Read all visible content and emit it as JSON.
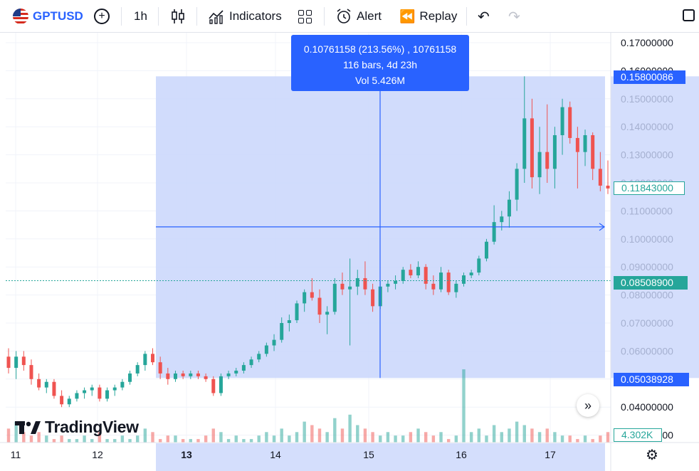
{
  "toolbar": {
    "symbol": "GPTUSD",
    "interval": "1h",
    "indicators_label": "Indicators",
    "alert_label": "Alert",
    "replay_label": "Replay"
  },
  "measure_tooltip": {
    "line1": "0.10761158 (213.56%) , 10761158",
    "line2": "116 bars, 4d 23h",
    "line3": "Vol 5.426M"
  },
  "price_tags": {
    "range_high": "0.15800086",
    "last_price": "0.11843000",
    "crosshair_price": "0.08508900",
    "range_low": "0.05038928",
    "volume": "4.302K"
  },
  "branding": "TradingView",
  "colors": {
    "up": "#26a69a",
    "down": "#ef5350",
    "accent": "#2962ff",
    "range_fill": "#c9d6fb"
  },
  "chart_data": {
    "type": "candlestick",
    "y_axis_ticks": [
      "0.17000000",
      "0.16000000",
      "0.15000000",
      "0.14000000",
      "0.13000000",
      "0.12000000",
      "0.11000000",
      "0.10000000",
      "0.09000000",
      "0.08000000",
      "0.07000000",
      "0.06000000",
      "0.05000000",
      "0.04000000",
      "0.03000000"
    ],
    "x_axis_ticks": [
      "11",
      "12",
      "13",
      "14",
      "15",
      "16",
      "17"
    ],
    "highlighted_x_tick": "13",
    "measure_range": {
      "price_low": 0.05038928,
      "price_high": 0.15800086,
      "change": 0.10761158,
      "change_pct": 213.56,
      "bars": 116,
      "duration": "4d 23h",
      "volume": "5.426M"
    },
    "crosshair_price": 0.085089,
    "last_price": 0.11843,
    "ohlc_estimated": [
      [
        0.058,
        0.061,
        0.052,
        0.054
      ],
      [
        0.054,
        0.06,
        0.05,
        0.058
      ],
      [
        0.058,
        0.06,
        0.053,
        0.055
      ],
      [
        0.055,
        0.057,
        0.048,
        0.05
      ],
      [
        0.05,
        0.052,
        0.046,
        0.047
      ],
      [
        0.047,
        0.05,
        0.045,
        0.049
      ],
      [
        0.049,
        0.05,
        0.043,
        0.044
      ],
      [
        0.044,
        0.046,
        0.04,
        0.041
      ],
      [
        0.041,
        0.044,
        0.04,
        0.043
      ],
      [
        0.043,
        0.046,
        0.042,
        0.045
      ],
      [
        0.045,
        0.047,
        0.043,
        0.046
      ],
      [
        0.046,
        0.048,
        0.044,
        0.047
      ],
      [
        0.047,
        0.048,
        0.042,
        0.043
      ],
      [
        0.043,
        0.047,
        0.042,
        0.046
      ],
      [
        0.046,
        0.048,
        0.044,
        0.047
      ],
      [
        0.047,
        0.05,
        0.046,
        0.049
      ],
      [
        0.049,
        0.053,
        0.048,
        0.052
      ],
      [
        0.052,
        0.056,
        0.051,
        0.055
      ],
      [
        0.055,
        0.06,
        0.053,
        0.059
      ],
      [
        0.059,
        0.061,
        0.055,
        0.056
      ],
      [
        0.056,
        0.058,
        0.05,
        0.052
      ],
      [
        0.052,
        0.054,
        0.048,
        0.05
      ],
      [
        0.05,
        0.053,
        0.049,
        0.052
      ],
      [
        0.052,
        0.053,
        0.05,
        0.051
      ],
      [
        0.051,
        0.053,
        0.05,
        0.052
      ],
      [
        0.052,
        0.053,
        0.05,
        0.051
      ],
      [
        0.051,
        0.052,
        0.049,
        0.05
      ],
      [
        0.05,
        0.051,
        0.044,
        0.045
      ],
      [
        0.045,
        0.052,
        0.044,
        0.051
      ],
      [
        0.051,
        0.053,
        0.05,
        0.052
      ],
      [
        0.052,
        0.054,
        0.051,
        0.053
      ],
      [
        0.053,
        0.056,
        0.052,
        0.055
      ],
      [
        0.055,
        0.058,
        0.054,
        0.057
      ],
      [
        0.057,
        0.06,
        0.056,
        0.059
      ],
      [
        0.059,
        0.063,
        0.058,
        0.062
      ],
      [
        0.062,
        0.066,
        0.06,
        0.064
      ],
      [
        0.064,
        0.072,
        0.063,
        0.07
      ],
      [
        0.07,
        0.073,
        0.067,
        0.071
      ],
      [
        0.071,
        0.078,
        0.07,
        0.077
      ],
      [
        0.077,
        0.082,
        0.074,
        0.081
      ],
      [
        0.081,
        0.086,
        0.078,
        0.079
      ],
      [
        0.079,
        0.082,
        0.07,
        0.073
      ],
      [
        0.073,
        0.076,
        0.066,
        0.074
      ],
      [
        0.074,
        0.086,
        0.073,
        0.084
      ],
      [
        0.084,
        0.088,
        0.08,
        0.082
      ],
      [
        0.082,
        0.093,
        0.062,
        0.083
      ],
      [
        0.083,
        0.089,
        0.08,
        0.086
      ],
      [
        0.086,
        0.092,
        0.08,
        0.082
      ],
      [
        0.082,
        0.084,
        0.074,
        0.076
      ],
      [
        0.076,
        0.085,
        0.075,
        0.083
      ],
      [
        0.083,
        0.085,
        0.081,
        0.084
      ],
      [
        0.084,
        0.087,
        0.082,
        0.085
      ],
      [
        0.085,
        0.09,
        0.084,
        0.089
      ],
      [
        0.089,
        0.091,
        0.086,
        0.087
      ],
      [
        0.087,
        0.092,
        0.086,
        0.09
      ],
      [
        0.09,
        0.091,
        0.082,
        0.084
      ],
      [
        0.084,
        0.087,
        0.08,
        0.082
      ],
      [
        0.082,
        0.09,
        0.081,
        0.088
      ],
      [
        0.088,
        0.089,
        0.08,
        0.081
      ],
      [
        0.081,
        0.085,
        0.079,
        0.084
      ],
      [
        0.084,
        0.088,
        0.083,
        0.087
      ],
      [
        0.087,
        0.089,
        0.086,
        0.088
      ],
      [
        0.088,
        0.094,
        0.087,
        0.093
      ],
      [
        0.093,
        0.1,
        0.092,
        0.099
      ],
      [
        0.099,
        0.112,
        0.098,
        0.106
      ],
      [
        0.106,
        0.11,
        0.103,
        0.108
      ],
      [
        0.108,
        0.117,
        0.104,
        0.114
      ],
      [
        0.114,
        0.127,
        0.11,
        0.125
      ],
      [
        0.125,
        0.158,
        0.12,
        0.143
      ],
      [
        0.143,
        0.15,
        0.118,
        0.122
      ],
      [
        0.122,
        0.14,
        0.116,
        0.131
      ],
      [
        0.131,
        0.148,
        0.12,
        0.125
      ],
      [
        0.125,
        0.14,
        0.118,
        0.137
      ],
      [
        0.137,
        0.15,
        0.13,
        0.147
      ],
      [
        0.147,
        0.149,
        0.134,
        0.136
      ],
      [
        0.136,
        0.14,
        0.118,
        0.131
      ],
      [
        0.131,
        0.139,
        0.126,
        0.137
      ],
      [
        0.137,
        0.138,
        0.121,
        0.125
      ],
      [
        0.125,
        0.131,
        0.117,
        0.119
      ],
      [
        0.119,
        0.128,
        0.116,
        0.118
      ]
    ],
    "volume_estimated": [
      4,
      6,
      3,
      2,
      3,
      2,
      1,
      2,
      1,
      1,
      2,
      1,
      3,
      1,
      1,
      2,
      1,
      2,
      4,
      3,
      1,
      2,
      2,
      1,
      1,
      1,
      2,
      4,
      3,
      1,
      2,
      1,
      1,
      2,
      3,
      2,
      4,
      2,
      3,
      6,
      5,
      4,
      3,
      7,
      4,
      8,
      5,
      4,
      3,
      2,
      3,
      2,
      2,
      3,
      4,
      3,
      2,
      3,
      1,
      2,
      21,
      3,
      4,
      2,
      5,
      3,
      4,
      6,
      5,
      4,
      3,
      4,
      3,
      2,
      2,
      1,
      2,
      1,
      2,
      3
    ]
  }
}
